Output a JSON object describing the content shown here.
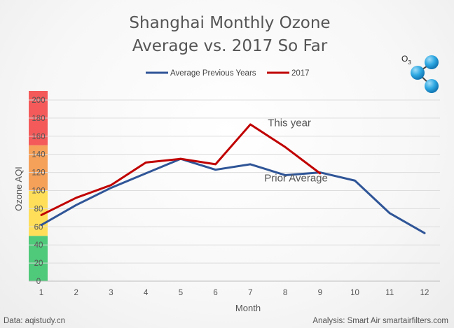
{
  "chart_data": {
    "type": "line",
    "title_lines": [
      "Shanghai Monthly Ozone",
      "Average vs. 2017 So Far"
    ],
    "xlabel": "Month",
    "ylabel": "Ozone AQI",
    "x": [
      1,
      2,
      3,
      4,
      5,
      6,
      7,
      8,
      9,
      10,
      11,
      12
    ],
    "y_ticks": [
      0,
      20,
      40,
      60,
      80,
      100,
      120,
      140,
      160,
      180,
      200
    ],
    "ylim": [
      0,
      210
    ],
    "grid": true,
    "legend_position": "top-center",
    "series": [
      {
        "name": "Average Previous Years",
        "color": "#2f5597",
        "values": [
          62,
          84,
          103,
          119,
          135,
          123,
          129,
          117,
          120,
          111,
          75,
          53
        ]
      },
      {
        "name": "2017",
        "color": "#c00000",
        "values": [
          73,
          92,
          106,
          131,
          135,
          129,
          173,
          148,
          119,
          null,
          null,
          null
        ]
      }
    ],
    "aqi_bands": [
      {
        "from": 0,
        "to": 50,
        "color": "#4fc97a"
      },
      {
        "from": 50,
        "to": 100,
        "color": "#ffdf5a"
      },
      {
        "from": 100,
        "to": 150,
        "color": "#f5a15a"
      },
      {
        "from": 150,
        "to": 210,
        "color": "#f45a5a"
      }
    ],
    "annotations": [
      {
        "text": "This year",
        "x": 7.5,
        "y": 171
      },
      {
        "text": "Prior Average",
        "x": 7.4,
        "y": 110
      }
    ]
  },
  "molecule": {
    "label": "O",
    "subscript": "3",
    "color": "#29a6e0",
    "icon": "ozone-molecule-icon"
  },
  "footer": {
    "source": "Data: aqistudy.cn",
    "credit": "Analysis: Smart Air smartairfilters.com"
  }
}
